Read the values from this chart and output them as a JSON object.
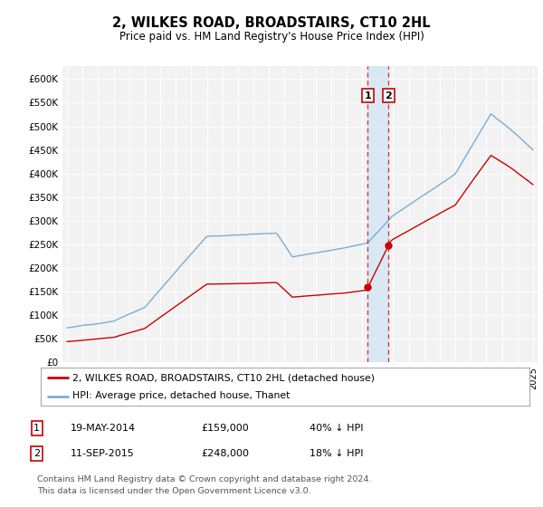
{
  "title": "2, WILKES ROAD, BROADSTAIRS, CT10 2HL",
  "subtitle": "Price paid vs. HM Land Registry's House Price Index (HPI)",
  "ylim": [
    0,
    620000
  ],
  "xlim_start": 1994.7,
  "xlim_end": 2025.3,
  "sale1_date": 2014.37,
  "sale1_price": 159000,
  "sale1_label": "19-MAY-2014",
  "sale2_date": 2015.7,
  "sale2_price": 248000,
  "sale2_label": "11-SEP-2015",
  "legend_line1": "2, WILKES ROAD, BROADSTAIRS, CT10 2HL (detached house)",
  "legend_line2": "HPI: Average price, detached house, Thanet",
  "footnote1": "Contains HM Land Registry data © Crown copyright and database right 2024.",
  "footnote2": "This data is licensed under the Open Government Licence v3.0.",
  "red_color": "#cc0000",
  "blue_color": "#7aadd4",
  "shade_color": "#d0e4f5",
  "bg_color": "#f2f2f2"
}
